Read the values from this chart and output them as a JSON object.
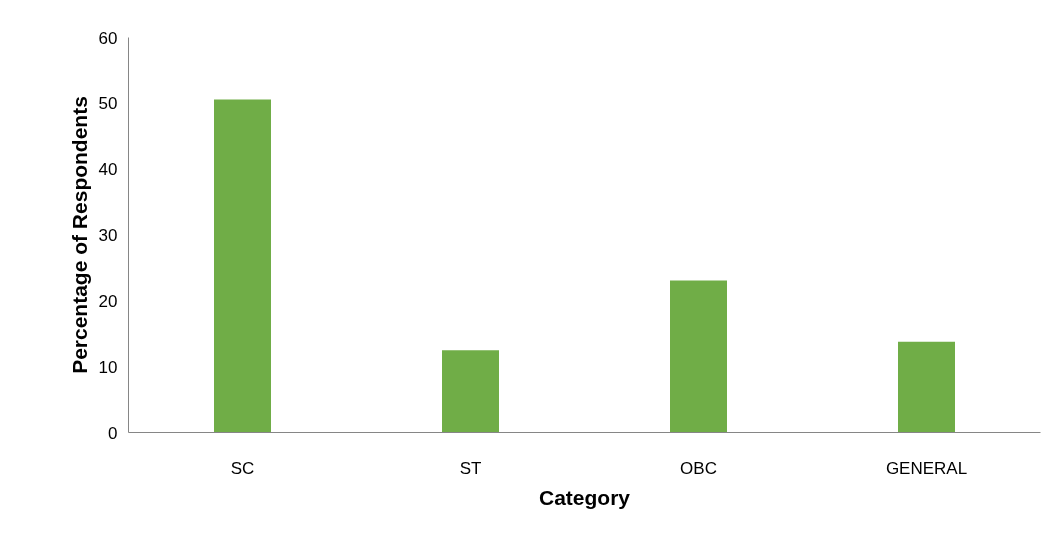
{
  "chart_data": {
    "type": "bar",
    "categories": [
      "SC",
      "ST",
      "OBC",
      "GENERAL"
    ],
    "values": [
      50.6,
      12.5,
      23.1,
      13.8
    ],
    "color": "#70ad47",
    "xlabel": "Category",
    "ylabel": "Percentage of Respondents",
    "ylim": [
      0,
      60
    ],
    "yticks": [
      0,
      10,
      20,
      30,
      40,
      50,
      60
    ],
    "grid": false
  }
}
